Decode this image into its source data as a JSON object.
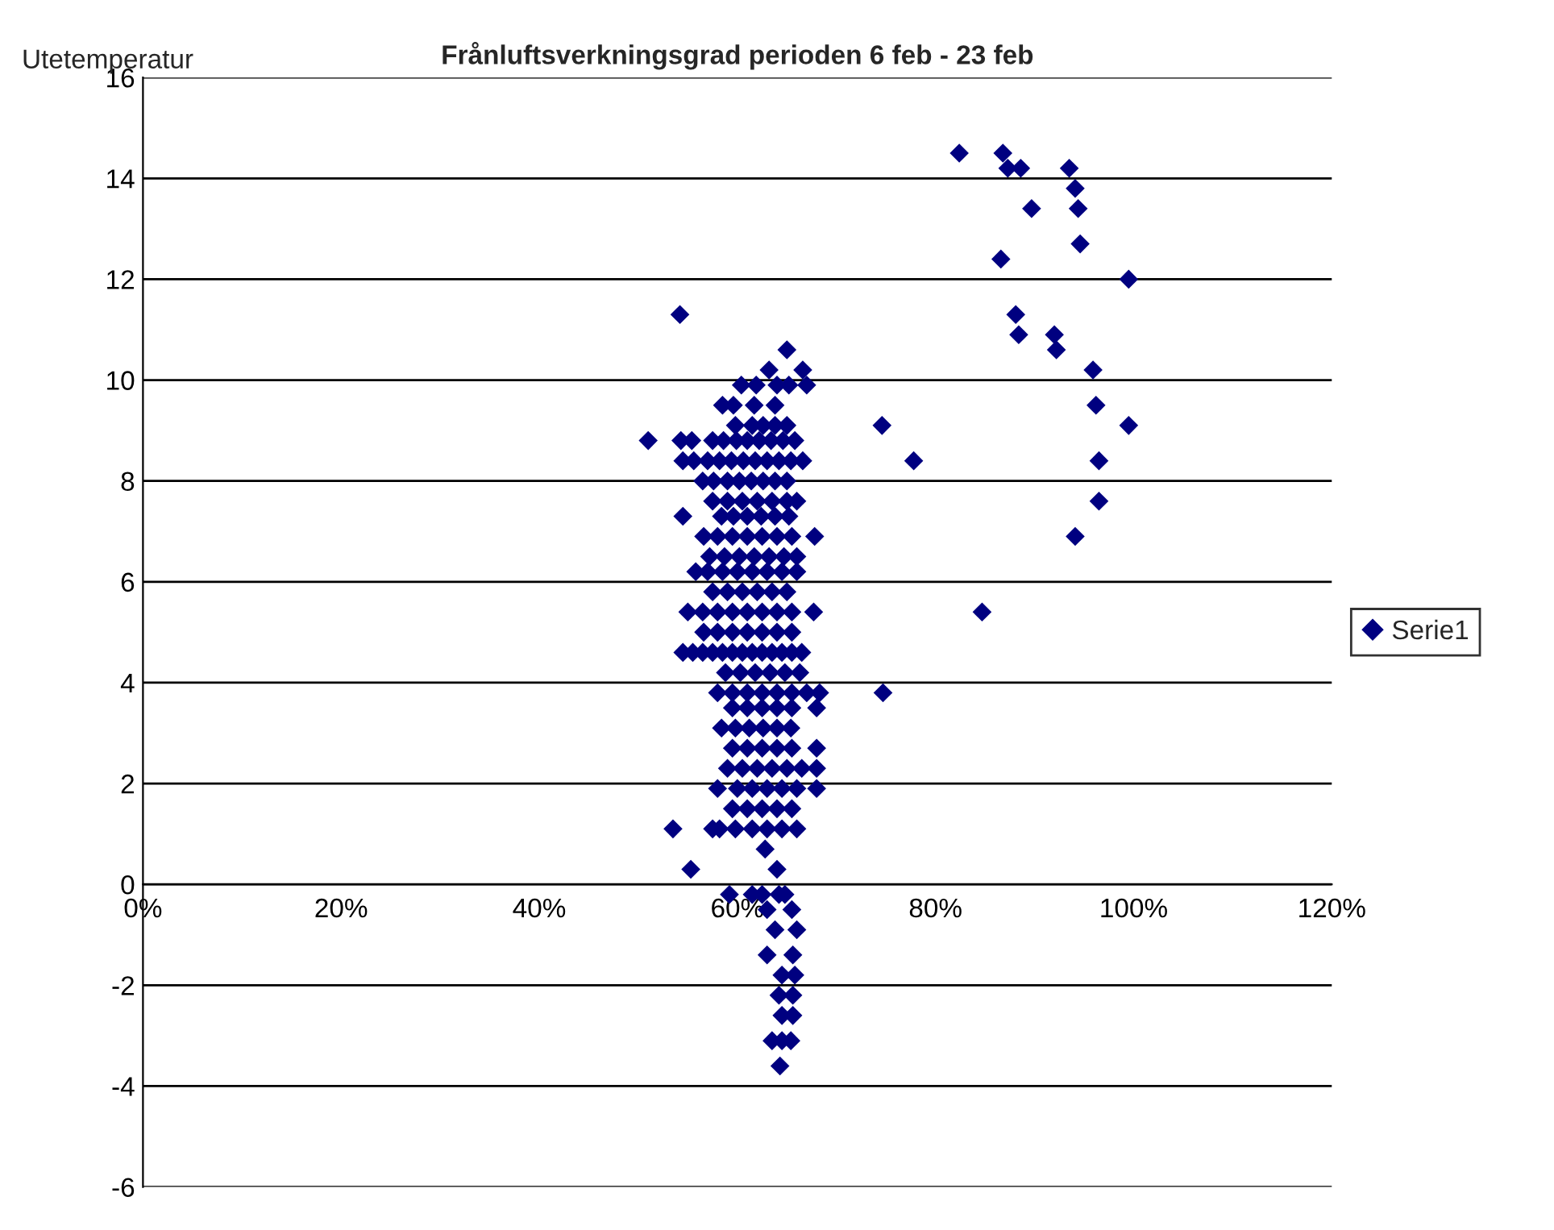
{
  "chart_data": {
    "type": "scatter",
    "title": "Frånluftsverkningsgrad perioden 6 feb - 23 feb",
    "ylabel": "Utetemperatur",
    "xlim": [
      0,
      120
    ],
    "xticks": [
      {
        "value": 0,
        "label": "0%"
      },
      {
        "value": 20,
        "label": "20%"
      },
      {
        "value": 40,
        "label": "40%"
      },
      {
        "value": 60,
        "label": "60%"
      },
      {
        "value": 80,
        "label": "80%"
      },
      {
        "value": 100,
        "label": "100%"
      },
      {
        "value": 120,
        "label": "120%"
      }
    ],
    "ylim": [
      -6,
      16
    ],
    "yticks": [
      -6,
      -4,
      -2,
      0,
      2,
      4,
      6,
      8,
      10,
      12,
      14,
      16
    ],
    "grid": "y",
    "legend": "right",
    "marker": "diamond",
    "series": [
      {
        "name": "Serie1",
        "color": "#000080",
        "x": [
          82.4,
          86.8,
          87.3,
          88.6,
          93.5,
          94.1,
          89.7,
          94.4,
          94.6,
          86.6,
          99.5,
          88.1,
          88.4,
          92.0,
          92.2,
          95.9,
          96.2,
          74.6,
          99.5,
          77.8,
          96.5,
          96.5,
          94.1,
          84.7,
          74.7,
          54.2,
          65.0,
          63.2,
          66.6,
          60.4,
          61.9,
          64.0,
          65.2,
          67.0,
          58.5,
          59.6,
          61.7,
          63.8,
          59.8,
          61.5,
          62.6,
          63.8,
          65.0,
          51.0,
          54.3,
          55.4,
          57.5,
          58.6,
          59.9,
          61.0,
          62.2,
          63.4,
          64.6,
          65.8,
          54.5,
          55.6,
          57.0,
          58.2,
          59.4,
          60.6,
          61.8,
          63.0,
          64.2,
          65.4,
          66.6,
          56.5,
          57.6,
          59.0,
          60.2,
          61.4,
          62.6,
          63.8,
          65.0,
          57.5,
          59.0,
          60.5,
          62.0,
          63.5,
          65.0,
          66.0,
          54.5,
          58.4,
          59.6,
          61.0,
          62.4,
          63.8,
          65.2,
          56.6,
          58.0,
          59.5,
          61.0,
          62.5,
          64.0,
          65.5,
          67.8,
          57.2,
          58.7,
          60.2,
          61.7,
          63.2,
          64.7,
          66.0,
          55.8,
          57.0,
          58.5,
          60.0,
          61.5,
          63.0,
          64.5,
          66.0,
          57.5,
          59.0,
          60.5,
          62.0,
          63.5,
          65.0,
          55.0,
          56.5,
          58.0,
          59.5,
          61.0,
          62.5,
          64.0,
          65.5,
          67.7,
          56.6,
          58.0,
          59.5,
          61.0,
          62.5,
          64.0,
          65.5,
          54.5,
          55.5,
          56.5,
          57.5,
          58.5,
          59.5,
          60.5,
          61.5,
          62.5,
          63.5,
          64.5,
          65.5,
          66.5,
          58.8,
          60.3,
          61.8,
          63.3,
          64.8,
          66.3,
          58.0,
          59.5,
          61.0,
          62.5,
          64.0,
          65.5,
          67.0,
          68.3,
          59.5,
          61.0,
          62.5,
          64.0,
          65.5,
          68.0,
          58.4,
          59.8,
          61.2,
          62.6,
          64.0,
          65.4,
          59.5,
          61.0,
          62.5,
          64.0,
          65.5,
          68.0,
          59.0,
          60.5,
          62.0,
          63.5,
          65.0,
          66.5,
          68.0,
          58.0,
          60.0,
          61.5,
          63.0,
          64.5,
          66.0,
          68.0,
          59.5,
          61.0,
          62.5,
          64.0,
          65.5,
          53.5,
          57.5,
          58.2,
          59.8,
          61.5,
          63.0,
          64.5,
          66.0,
          62.8,
          55.3,
          64.0,
          59.2,
          61.5,
          62.5,
          64.2,
          64.8,
          63.0,
          65.5,
          63.8,
          66.0,
          63.0,
          65.6,
          64.5,
          65.8,
          64.2,
          65.6,
          64.5,
          65.6,
          63.5,
          64.5,
          65.4,
          64.3
        ],
        "values": [
          14.5,
          14.5,
          14.2,
          14.2,
          14.2,
          13.8,
          13.4,
          13.4,
          12.7,
          12.4,
          12.0,
          11.3,
          10.9,
          10.9,
          10.6,
          10.2,
          9.5,
          9.1,
          9.1,
          8.4,
          8.4,
          7.6,
          6.9,
          5.4,
          3.8,
          11.3,
          10.6,
          10.2,
          10.2,
          9.9,
          9.9,
          9.9,
          9.9,
          9.9,
          9.5,
          9.5,
          9.5,
          9.5,
          9.1,
          9.1,
          9.1,
          9.1,
          9.1,
          8.8,
          8.8,
          8.8,
          8.8,
          8.8,
          8.8,
          8.8,
          8.8,
          8.8,
          8.8,
          8.8,
          8.4,
          8.4,
          8.4,
          8.4,
          8.4,
          8.4,
          8.4,
          8.4,
          8.4,
          8.4,
          8.4,
          8.0,
          8.0,
          8.0,
          8.0,
          8.0,
          8.0,
          8.0,
          8.0,
          7.6,
          7.6,
          7.6,
          7.6,
          7.6,
          7.6,
          7.6,
          7.3,
          7.3,
          7.3,
          7.3,
          7.3,
          7.3,
          7.3,
          6.9,
          6.9,
          6.9,
          6.9,
          6.9,
          6.9,
          6.9,
          6.9,
          6.5,
          6.5,
          6.5,
          6.5,
          6.5,
          6.5,
          6.5,
          6.2,
          6.2,
          6.2,
          6.2,
          6.2,
          6.2,
          6.2,
          6.2,
          5.8,
          5.8,
          5.8,
          5.8,
          5.8,
          5.8,
          5.4,
          5.4,
          5.4,
          5.4,
          5.4,
          5.4,
          5.4,
          5.4,
          5.4,
          5.0,
          5.0,
          5.0,
          5.0,
          5.0,
          5.0,
          5.0,
          4.6,
          4.6,
          4.6,
          4.6,
          4.6,
          4.6,
          4.6,
          4.6,
          4.6,
          4.6,
          4.6,
          4.6,
          4.6,
          4.2,
          4.2,
          4.2,
          4.2,
          4.2,
          4.2,
          3.8,
          3.8,
          3.8,
          3.8,
          3.8,
          3.8,
          3.8,
          3.8,
          3.5,
          3.5,
          3.5,
          3.5,
          3.5,
          3.5,
          3.1,
          3.1,
          3.1,
          3.1,
          3.1,
          3.1,
          2.7,
          2.7,
          2.7,
          2.7,
          2.7,
          2.7,
          2.3,
          2.3,
          2.3,
          2.3,
          2.3,
          2.3,
          2.3,
          1.9,
          1.9,
          1.9,
          1.9,
          1.9,
          1.9,
          1.9,
          1.5,
          1.5,
          1.5,
          1.5,
          1.5,
          1.1,
          1.1,
          1.1,
          1.1,
          1.1,
          1.1,
          1.1,
          1.1,
          0.7,
          0.3,
          0.3,
          -0.2,
          -0.2,
          -0.2,
          -0.2,
          -0.2,
          -0.5,
          -0.5,
          -0.9,
          -0.9,
          -1.4,
          -1.4,
          -1.8,
          -1.8,
          -2.2,
          -2.2,
          -2.6,
          -2.6,
          -3.1,
          -3.1,
          -3.1,
          -3.6
        ]
      }
    ]
  }
}
